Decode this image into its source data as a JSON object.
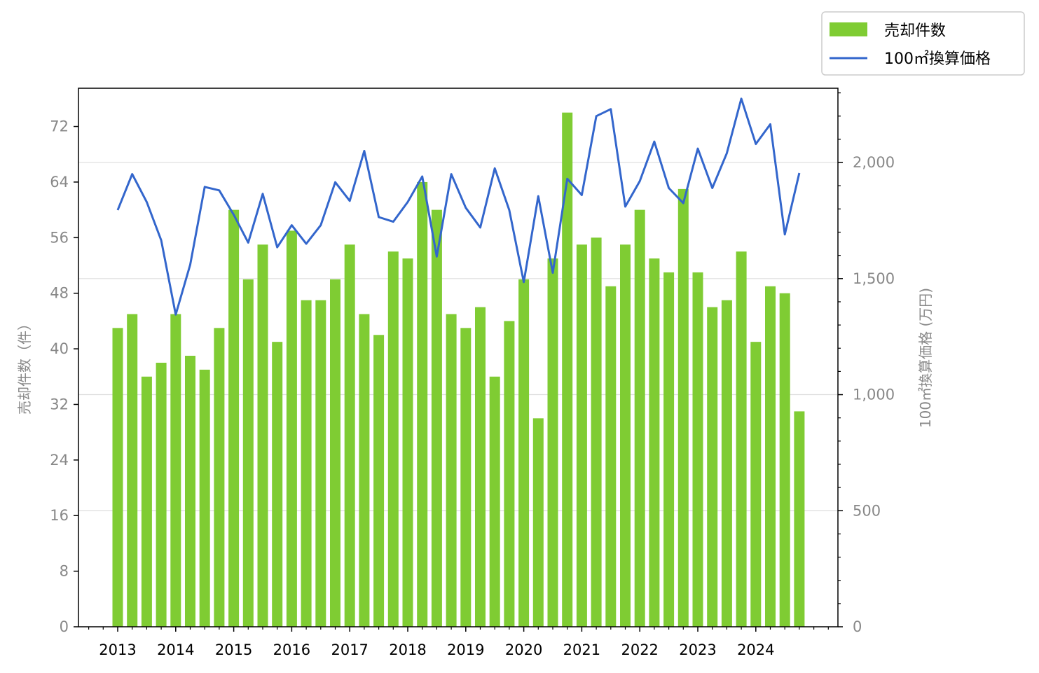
{
  "chart_data": {
    "type": "bar+line",
    "x_tick_labels": [
      "2013",
      "2014",
      "2015",
      "2016",
      "2017",
      "2018",
      "2019",
      "2020",
      "2021",
      "2022",
      "2023",
      "2024"
    ],
    "series": [
      {
        "name": "売却件数",
        "type": "bar",
        "axis": "left",
        "color": "#7fcc33",
        "values": [
          43,
          45,
          36,
          38,
          45,
          39,
          37,
          43,
          60,
          50,
          55,
          41,
          57,
          47,
          47,
          50,
          55,
          45,
          42,
          54,
          53,
          64,
          60,
          45,
          43,
          46,
          36,
          44,
          50,
          30,
          53,
          74,
          55,
          56,
          49,
          55,
          60,
          53,
          51,
          63,
          51,
          46,
          47,
          54,
          41,
          49,
          48,
          31
        ]
      },
      {
        "name": "100㎡換算価格",
        "type": "line",
        "axis": "right",
        "color": "#3366cc",
        "values": [
          1795,
          1950,
          1830,
          1665,
          1345,
          1560,
          1895,
          1880,
          1775,
          1655,
          1865,
          1635,
          1730,
          1650,
          1730,
          1915,
          1835,
          2050,
          1765,
          1745,
          1830,
          1940,
          1595,
          1950,
          1805,
          1720,
          1975,
          1795,
          1485,
          1855,
          1525,
          1930,
          1860,
          2200,
          2230,
          1810,
          1920,
          2090,
          1890,
          1825,
          2060,
          1890,
          2040,
          2275,
          2080,
          2165,
          1690,
          1955
        ]
      }
    ],
    "ylabel_left": "売却件数（件）",
    "ylabel_right": "100㎡換算価格 (万円)",
    "y_left": {
      "min": 0,
      "max": 77.5,
      "ticks": [
        0,
        8,
        16,
        24,
        32,
        40,
        48,
        56,
        64,
        72
      ]
    },
    "y_right": {
      "min": 0,
      "max": 2320,
      "ticks": [
        0,
        500,
        1000,
        1500,
        2000
      ],
      "tick_labels": [
        "0",
        "500",
        "1,000",
        "1,500",
        "2,000"
      ]
    },
    "grid": "horizontal lines at right-axis major ticks",
    "legend": {
      "placement": "top-right",
      "items": [
        {
          "label": "売却件数",
          "marker": "bar",
          "color": "#7fcc33"
        },
        {
          "label": "100㎡換算価格",
          "marker": "line",
          "color": "#3366cc"
        }
      ]
    },
    "colors": {
      "tick_text_left_right": "#888888",
      "tick_text_bottom": "#000000",
      "grid": "#dddddd"
    }
  }
}
